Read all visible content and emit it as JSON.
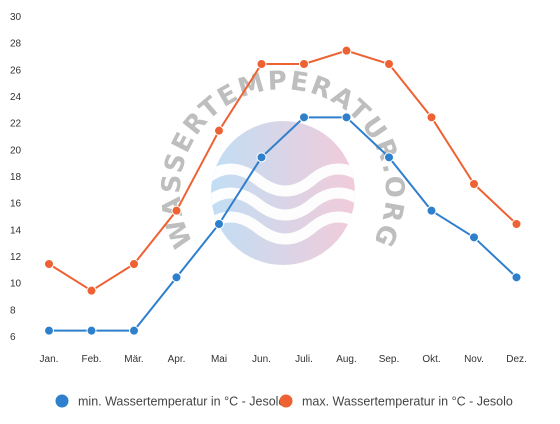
{
  "chart_data": {
    "type": "line",
    "title": "",
    "xlabel": "",
    "ylabel": "",
    "categories": [
      "Jan.",
      "Feb.",
      "Mär.",
      "Apr.",
      "Mai",
      "Jun.",
      "Juli.",
      "Aug.",
      "Sep.",
      "Okt.",
      "Nov.",
      "Dez."
    ],
    "y_ticks": [
      6,
      8,
      10,
      12,
      14,
      16,
      18,
      20,
      22,
      24,
      26,
      28,
      30
    ],
    "ylim": [
      6,
      30
    ],
    "grid": false,
    "legend_position": "bottom",
    "series": [
      {
        "name": "min. Wassertemperatur in °C - Jesolo",
        "color": "#2e7fcc",
        "values": [
          6.4,
          6.4,
          6.4,
          10.4,
          14.4,
          19.4,
          22.4,
          22.4,
          19.4,
          15.4,
          13.4,
          10.4
        ]
      },
      {
        "name": "max. Wassertemperatur in °C - Jesolo",
        "color": "#ee6132",
        "values": [
          11.4,
          9.4,
          11.4,
          15.4,
          21.4,
          26.4,
          26.4,
          27.4,
          26.4,
          22.4,
          17.4,
          14.4
        ]
      }
    ]
  },
  "watermark": {
    "text": "WASSERTEMPERATUR.ORG"
  }
}
